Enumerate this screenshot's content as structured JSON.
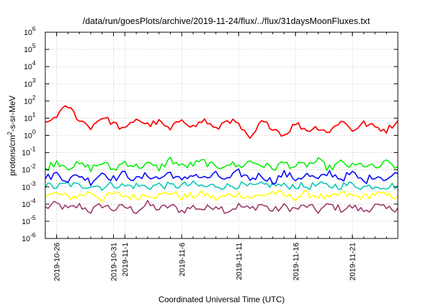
{
  "chart_data": {
    "type": "line",
    "title": "/data/run/goesPlots/archive/2019-11-24/flux/../flux/31daysMoonFluxes.txt",
    "xlabel": "Coordinated Universal Time (UTC)",
    "ylabel": {
      "prefix": "protons/cm",
      "sup": "2",
      "suffix": "-s-sr-MeV"
    },
    "y_scale": "log",
    "ylim": [
      1e-06,
      1000000.0
    ],
    "y_ticks": [
      {
        "value": 1e-06,
        "base": "10",
        "exp": "-6"
      },
      {
        "value": 1e-05,
        "base": "10",
        "exp": "-5"
      },
      {
        "value": 0.0001,
        "base": "10",
        "exp": "-4"
      },
      {
        "value": 0.001,
        "base": "10",
        "exp": "-3"
      },
      {
        "value": 0.01,
        "base": "10",
        "exp": "-2"
      },
      {
        "value": 0.1,
        "base": "10",
        "exp": "-1"
      },
      {
        "value": 1,
        "base": "10",
        "exp": "0"
      },
      {
        "value": 10,
        "base": "10",
        "exp": "1"
      },
      {
        "value": 100,
        "base": "10",
        "exp": "2"
      },
      {
        "value": 1000,
        "base": "10",
        "exp": "3"
      },
      {
        "value": 10000,
        "base": "10",
        "exp": "4"
      },
      {
        "value": 100000,
        "base": "10",
        "exp": "5"
      },
      {
        "value": 1000000,
        "base": "10",
        "exp": "6"
      }
    ],
    "xlim": [
      "2019-10-25",
      "2019-11-25"
    ],
    "x_ticks": [
      {
        "date": "2019-10-26",
        "label": "2019-10-26"
      },
      {
        "date": "2019-10-31",
        "label": "2019-10-31"
      },
      {
        "date": "2019-11-01",
        "label": "2019-11-1"
      },
      {
        "date": "2019-11-06",
        "label": "2019-11-6"
      },
      {
        "date": "2019-11-11",
        "label": "2019-11-11"
      },
      {
        "date": "2019-11-16",
        "label": "2019-11-16"
      },
      {
        "date": "2019-11-21",
        "label": "2019-11-21"
      }
    ],
    "grid": true,
    "legend": "none",
    "series": [
      {
        "color": "#ff0000",
        "x": [
          "2019-10-25",
          "2019-10-26",
          "2019-10-27",
          "2019-10-28",
          "2019-10-29",
          "2019-10-30",
          "2019-10-31",
          "2019-11-01",
          "2019-11-02",
          "2019-11-03",
          "2019-11-04",
          "2019-11-05",
          "2019-11-06",
          "2019-11-07",
          "2019-11-08",
          "2019-11-09",
          "2019-11-10",
          "2019-11-11",
          "2019-11-12",
          "2019-11-13",
          "2019-11-14",
          "2019-11-15",
          "2019-11-16",
          "2019-11-17",
          "2019-11-18",
          "2019-11-19",
          "2019-11-20",
          "2019-11-21",
          "2019-11-22",
          "2019-11-23",
          "2019-11-24",
          "2019-11-25"
        ],
        "values": [
          4,
          15,
          50,
          8,
          3,
          12,
          5,
          2,
          10,
          4,
          6,
          2,
          10,
          3,
          8,
          2,
          9,
          4,
          0.5,
          6,
          3,
          1,
          5,
          2,
          3,
          1.5,
          8,
          2,
          5,
          3,
          2,
          7
        ]
      },
      {
        "color": "#00ee00",
        "x": [
          "2019-10-25",
          "2019-10-26",
          "2019-10-27",
          "2019-10-28",
          "2019-10-29",
          "2019-10-30",
          "2019-10-31",
          "2019-11-01",
          "2019-11-02",
          "2019-11-03",
          "2019-11-04",
          "2019-11-05",
          "2019-11-06",
          "2019-11-07",
          "2019-11-08",
          "2019-11-09",
          "2019-11-10",
          "2019-11-11",
          "2019-11-12",
          "2019-11-13",
          "2019-11-14",
          "2019-11-15",
          "2019-11-16",
          "2019-11-17",
          "2019-11-18",
          "2019-11-19",
          "2019-11-20",
          "2019-11-21",
          "2019-11-22",
          "2019-11-23",
          "2019-11-24",
          "2019-11-25"
        ],
        "values": [
          0.012,
          0.03,
          0.015,
          0.02,
          0.012,
          0.025,
          0.01,
          0.03,
          0.015,
          0.02,
          0.012,
          0.04,
          0.015,
          0.02,
          0.03,
          0.012,
          0.025,
          0.015,
          0.03,
          0.02,
          0.012,
          0.025,
          0.015,
          0.02,
          0.03,
          0.012,
          0.025,
          0.015,
          0.02,
          0.012,
          0.025,
          0.015
        ]
      },
      {
        "color": "#0000ff",
        "x": [
          "2019-10-25",
          "2019-10-26",
          "2019-10-27",
          "2019-10-28",
          "2019-10-29",
          "2019-10-30",
          "2019-10-31",
          "2019-11-01",
          "2019-11-02",
          "2019-11-03",
          "2019-11-04",
          "2019-11-05",
          "2019-11-06",
          "2019-11-07",
          "2019-11-08",
          "2019-11-09",
          "2019-11-10",
          "2019-11-11",
          "2019-11-12",
          "2019-11-13",
          "2019-11-14",
          "2019-11-15",
          "2019-11-16",
          "2019-11-17",
          "2019-11-18",
          "2019-11-19",
          "2019-11-20",
          "2019-11-21",
          "2019-11-22",
          "2019-11-23",
          "2019-11-24",
          "2019-11-25"
        ],
        "values": [
          0.003,
          0.006,
          0.0025,
          0.005,
          0.002,
          0.007,
          0.003,
          0.006,
          0.0025,
          0.005,
          0.003,
          0.007,
          0.002,
          0.006,
          0.003,
          0.005,
          0.0025,
          0.007,
          0.003,
          0.005,
          0.002,
          0.006,
          0.003,
          0.005,
          0.0025,
          0.007,
          0.003,
          0.006,
          0.002,
          0.005,
          0.003,
          0.006
        ]
      },
      {
        "color": "#00c8b4",
        "x": [
          "2019-10-25",
          "2019-10-26",
          "2019-10-27",
          "2019-10-28",
          "2019-10-29",
          "2019-10-30",
          "2019-10-31",
          "2019-11-01",
          "2019-11-02",
          "2019-11-03",
          "2019-11-04",
          "2019-11-05",
          "2019-11-06",
          "2019-11-07",
          "2019-11-08",
          "2019-11-09",
          "2019-11-10",
          "2019-11-11",
          "2019-11-12",
          "2019-11-13",
          "2019-11-14",
          "2019-11-15",
          "2019-11-16",
          "2019-11-17",
          "2019-11-18",
          "2019-11-19",
          "2019-11-20",
          "2019-11-21",
          "2019-11-22",
          "2019-11-23",
          "2019-11-24",
          "2019-11-25"
        ],
        "values": [
          0.0012,
          0.001,
          0.0015,
          0.0011,
          0.0013,
          0.001,
          0.0014,
          0.0011,
          0.0012,
          0.001,
          0.0013,
          0.0011,
          0.0012,
          0.0014,
          0.001,
          0.0012,
          0.0011,
          0.0013,
          0.001,
          0.0012,
          0.0014,
          0.0011,
          0.0012,
          0.001,
          0.0013,
          0.0011,
          0.0012,
          0.0014,
          0.001,
          0.0012,
          0.0011,
          0.0012
        ]
      },
      {
        "color": "#ffff00",
        "x": [
          "2019-10-25",
          "2019-10-26",
          "2019-10-27",
          "2019-10-28",
          "2019-10-29",
          "2019-10-30",
          "2019-10-31",
          "2019-11-01",
          "2019-11-02",
          "2019-11-03",
          "2019-11-04",
          "2019-11-05",
          "2019-11-06",
          "2019-11-07",
          "2019-11-08",
          "2019-11-09",
          "2019-11-10",
          "2019-11-11",
          "2019-11-12",
          "2019-11-13",
          "2019-11-14",
          "2019-11-15",
          "2019-11-16",
          "2019-11-17",
          "2019-11-18",
          "2019-11-19",
          "2019-11-20",
          "2019-11-21",
          "2019-11-22",
          "2019-11-23",
          "2019-11-24",
          "2019-11-25"
        ],
        "values": [
          0.0003,
          0.0004,
          0.00025,
          0.0003,
          0.0005,
          0.0002,
          0.0004,
          0.0003,
          0.00025,
          0.0004,
          0.0003,
          0.0005,
          0.00025,
          0.0003,
          0.0004,
          0.0002,
          0.0003,
          0.0004,
          0.00025,
          0.0003,
          0.0005,
          0.0003,
          0.00025,
          0.0004,
          0.0003,
          0.0002,
          0.0004,
          0.0003,
          0.00025,
          0.0004,
          0.0003,
          0.0003
        ]
      },
      {
        "color": "#993366",
        "x": [
          "2019-10-25",
          "2019-10-26",
          "2019-10-27",
          "2019-10-28",
          "2019-10-29",
          "2019-10-30",
          "2019-10-31",
          "2019-11-01",
          "2019-11-02",
          "2019-11-03",
          "2019-11-04",
          "2019-11-05",
          "2019-11-06",
          "2019-11-07",
          "2019-11-08",
          "2019-11-09",
          "2019-11-10",
          "2019-11-11",
          "2019-11-12",
          "2019-11-13",
          "2019-11-14",
          "2019-11-15",
          "2019-11-16",
          "2019-11-17",
          "2019-11-18",
          "2019-11-19",
          "2019-11-20",
          "2019-11-21",
          "2019-11-22",
          "2019-11-23",
          "2019-11-24",
          "2019-11-25"
        ],
        "values": [
          6e-05,
          0.0001,
          5e-05,
          8e-05,
          4e-05,
          9e-05,
          5e-05,
          7e-05,
          4e-05,
          0.0001,
          5e-05,
          8e-05,
          4e-05,
          7e-05,
          5e-05,
          9e-05,
          4e-05,
          8e-05,
          5e-05,
          0.0001,
          4e-05,
          7e-05,
          5e-05,
          8e-05,
          4e-05,
          9e-05,
          5e-05,
          7e-05,
          4e-05,
          8e-05,
          5e-05,
          6e-05
        ]
      }
    ]
  }
}
